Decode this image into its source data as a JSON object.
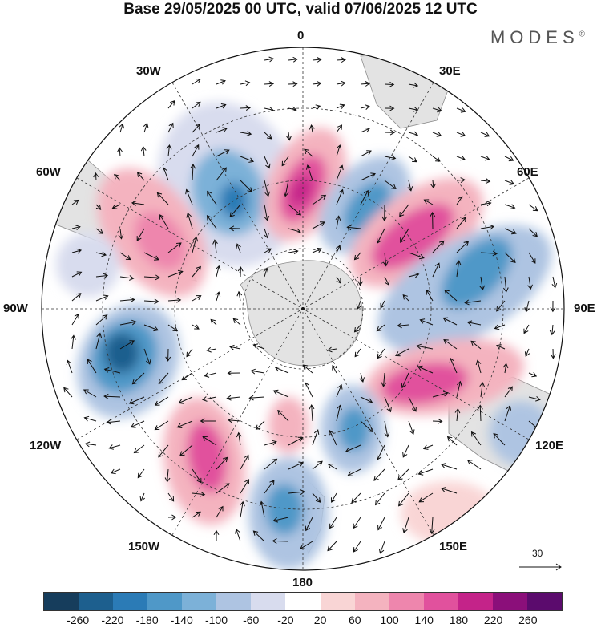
{
  "header": {
    "title": "Base 29/05/2025 00 UTC, valid 07/06/2025 12 UTC",
    "brand": "MODES",
    "brand_mark": "®"
  },
  "map": {
    "projection": "south-polar-stereographic",
    "longitude_labels": {
      "top": "0",
      "top_right": "30E",
      "upper_right": "60E",
      "right": "90E",
      "lower_right": "120E",
      "bottom_right": "150E",
      "bottom": "180",
      "bottom_left": "150W",
      "lower_left": "120W",
      "left": "90W",
      "upper_left": "60W",
      "top_left": "30W"
    },
    "reference_vector": {
      "label": "30"
    },
    "land_color": "#e3e3e3",
    "coast_color": "#888888"
  },
  "colorbar": {
    "colors": [
      "#163d5c",
      "#1d5f8e",
      "#2b7bb6",
      "#4f98c8",
      "#7cb1d8",
      "#aec4e2",
      "#d8dcee",
      "#ffffff",
      "#f9d5d5",
      "#f4b3bf",
      "#ee86ad",
      "#e1519d",
      "#c42389",
      "#8b0f7a",
      "#5b0b6d"
    ],
    "tick_labels": [
      "-260",
      "-220",
      "-180",
      "-140",
      "-100",
      "-60",
      "-20",
      "20",
      "60",
      "100",
      "140",
      "180",
      "220",
      "260"
    ]
  }
}
